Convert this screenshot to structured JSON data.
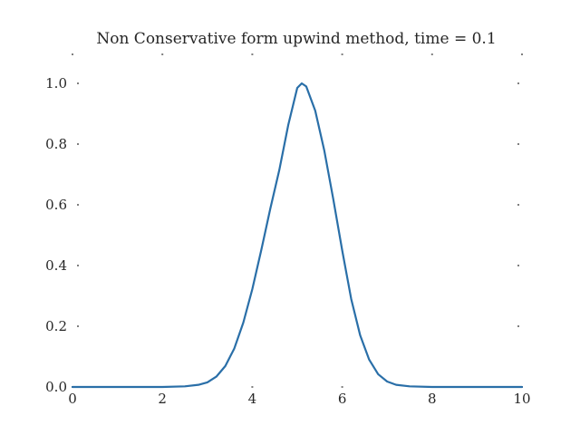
{
  "chart_data": {
    "type": "line",
    "title": "Non Conservative form upwind method, time = 0.1",
    "xlabel": "",
    "ylabel": "",
    "xlim": [
      0,
      10
    ],
    "ylim": [
      0,
      1.0
    ],
    "x_ticks": [
      0,
      2,
      4,
      6,
      8,
      10
    ],
    "x_tick_labels": [
      "0",
      "2",
      "4",
      "6",
      "8",
      "10"
    ],
    "y_ticks": [
      0.0,
      0.2,
      0.4,
      0.6,
      0.8,
      1.0
    ],
    "y_tick_labels": [
      "0.0",
      "0.2",
      "0.4",
      "0.6",
      "0.8",
      "1.0"
    ],
    "grid": false,
    "series": [
      {
        "color": "#2a6fa8",
        "x": [
          0.0,
          0.5,
          1.0,
          1.5,
          2.0,
          2.5,
          2.8,
          3.0,
          3.2,
          3.4,
          3.6,
          3.8,
          4.0,
          4.2,
          4.4,
          4.6,
          4.8,
          5.0,
          5.1,
          5.2,
          5.4,
          5.6,
          5.8,
          6.0,
          6.2,
          6.4,
          6.6,
          6.8,
          7.0,
          7.2,
          7.5,
          8.0,
          8.5,
          9.0,
          9.5,
          10.0
        ],
        "y": [
          0.0,
          0.0,
          0.0,
          0.0,
          0.0,
          0.002,
          0.007,
          0.015,
          0.034,
          0.069,
          0.127,
          0.212,
          0.322,
          0.451,
          0.587,
          0.714,
          0.863,
          0.985,
          1.0,
          0.99,
          0.91,
          0.78,
          0.62,
          0.45,
          0.29,
          0.17,
          0.09,
          0.042,
          0.018,
          0.007,
          0.002,
          0.0,
          0.0,
          0.0,
          0.0,
          0.0
        ]
      }
    ]
  }
}
